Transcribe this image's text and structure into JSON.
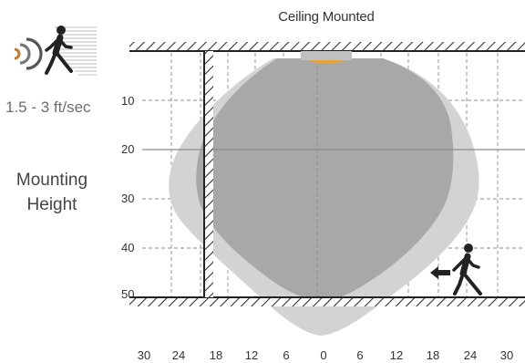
{
  "chart_data": {
    "type": "diagram",
    "title": "Ceiling Mounted",
    "speed": "1.5 - 3 ft/sec",
    "mounting_height": [
      "Mounting",
      "Height"
    ],
    "y_ticks": [
      "10",
      "20",
      "30",
      "40",
      "50"
    ],
    "x_ticks": [
      "30",
      "24",
      "18",
      "12",
      "6",
      "0",
      "6",
      "12",
      "18",
      "24",
      "30"
    ],
    "colors": {
      "outer_zone": "#d3d3d3",
      "inner_zone": "#a8a8a8",
      "sensor": "#e8a33a",
      "grid": "#8c8c8c",
      "hatch": "#333333"
    },
    "icons": [
      "motion-wave-icon",
      "walking-person-icon",
      "left-arrow-icon"
    ]
  }
}
